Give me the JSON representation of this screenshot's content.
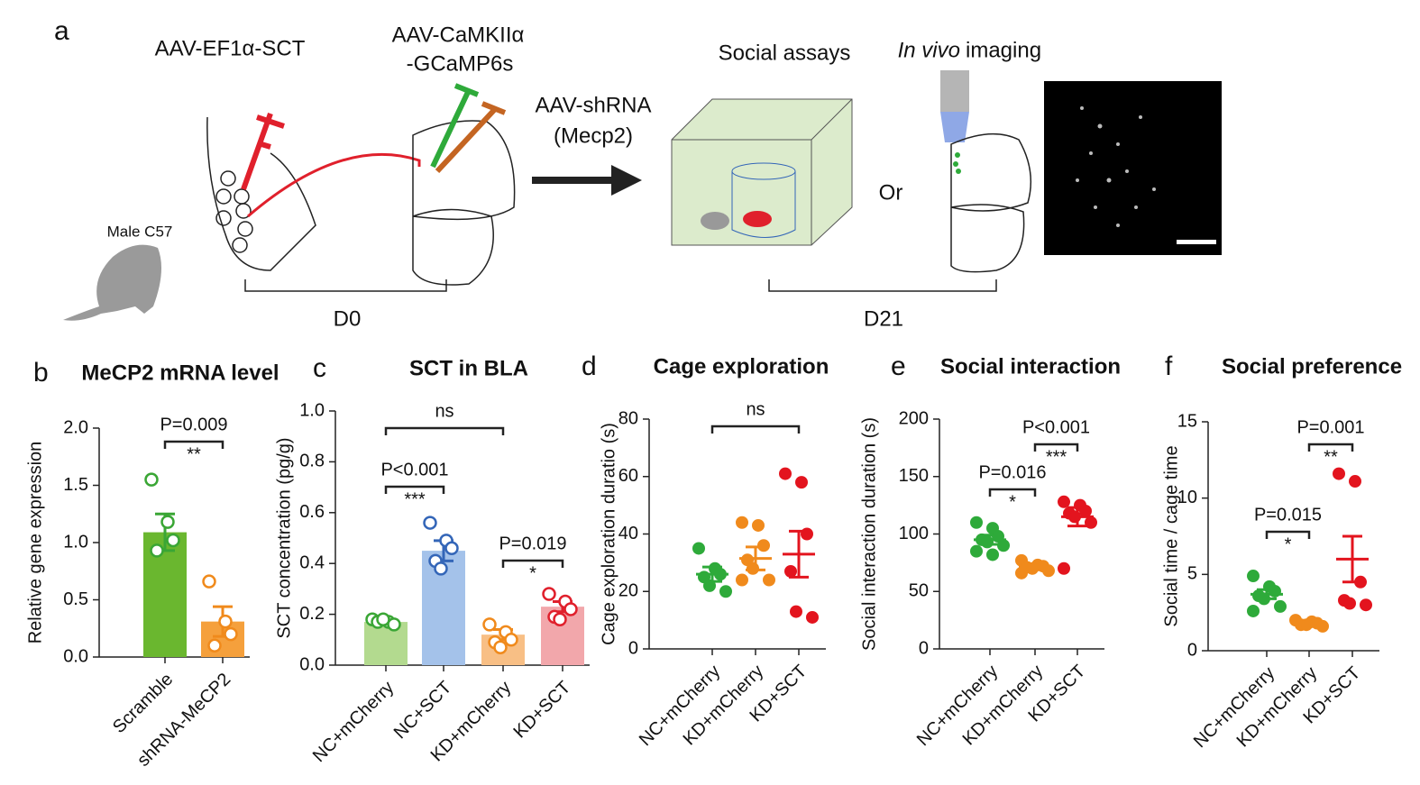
{
  "schematic": {
    "panel": "a",
    "left_virus": "AAV-EF1α-SCT",
    "right_virus_line1": "AAV-CaMKIIα",
    "right_virus_line2": "-GCaMP6s",
    "mouse": "Male C57",
    "day0": "D0",
    "shrna_line1": "AAV-shRNA",
    "shrna_line2": "(Mecp2)",
    "social": "Social assays",
    "imaging_italic": "In vivo",
    "imaging": "imaging",
    "or": "Or",
    "day21": "D21"
  },
  "chart_data": [
    {
      "type": "bar",
      "panel": "b",
      "title": "MeCP2 mRNA level",
      "ylabel": "Relative gene expression",
      "categories": [
        "Scramble",
        "shRNA-MeCP2"
      ],
      "values": [
        1.09,
        0.31
      ],
      "errors": [
        0.16,
        0.13
      ],
      "points": [
        [
          1.55,
          1.18,
          1.02,
          0.93
        ],
        [
          0.66,
          0.31,
          0.2,
          0.1
        ]
      ],
      "fill_colors": [
        "#6ab72f",
        "#f5a03c"
      ],
      "colors": [
        "#3aa635",
        "#f08a1c"
      ],
      "ylim": [
        0,
        2
      ],
      "yticks": [
        {
          "value": 0,
          "label": "0.0"
        },
        {
          "value": 0.5,
          "label": "0.5"
        },
        {
          "value": 1,
          "label": "1.0"
        },
        {
          "value": 1.5,
          "label": "1.5"
        },
        {
          "value": 2,
          "label": "2.0"
        }
      ],
      "annotations": [
        {
          "text": "P=0.009",
          "stars": "**"
        }
      ]
    },
    {
      "type": "bar",
      "panel": "c",
      "title": "SCT in BLA",
      "ylabel": "SCT concentration (pg/g)",
      "categories": [
        "NC+mCherry",
        "NC+SCT",
        "KD+mCherry",
        "KD+SCT"
      ],
      "values": [
        0.17,
        0.45,
        0.12,
        0.23
      ],
      "errors": [
        0.01,
        0.04,
        0.02,
        0.02
      ],
      "points": [
        [
          0.18,
          0.17,
          0.16,
          0.17,
          0.18
        ],
        [
          0.56,
          0.49,
          0.46,
          0.41,
          0.38
        ],
        [
          0.16,
          0.13,
          0.1,
          0.09,
          0.07
        ],
        [
          0.28,
          0.25,
          0.22,
          0.19,
          0.18
        ]
      ],
      "fill_colors": [
        "#b3da8f",
        "#a4c2ea",
        "#f8bf85",
        "#f2a7ab"
      ],
      "colors": [
        "#3aa635",
        "#3466b8",
        "#f08a1c",
        "#e0202c"
      ],
      "ylim": [
        0,
        1
      ],
      "yticks": [
        {
          "value": 0,
          "label": "0.0"
        },
        {
          "value": 0.2,
          "label": "0.2"
        },
        {
          "value": 0.4,
          "label": "0.4"
        },
        {
          "value": 0.6,
          "label": "0.6"
        },
        {
          "value": 0.8,
          "label": "0.8"
        },
        {
          "value": 1,
          "label": "1.0"
        }
      ],
      "annotations": [
        {
          "text": "ns"
        },
        {
          "text": "P<0.001",
          "stars": "***"
        },
        {
          "text": "P=0.019",
          "stars": "*"
        }
      ]
    },
    {
      "type": "dot",
      "panel": "d",
      "title": "Cage exploration",
      "ylabel": "Cage exploration duratio (s)",
      "categories": [
        "NC+mCherry",
        "KD+mCherry",
        "KD+SCT"
      ],
      "values": [
        26,
        31.5,
        33
      ],
      "errors": [
        2.5,
        4,
        8
      ],
      "points": [
        [
          35,
          28,
          26,
          25,
          22,
          20
        ],
        [
          44,
          43,
          36,
          31,
          28,
          24,
          24
        ],
        [
          61,
          58,
          40,
          27,
          13,
          11
        ]
      ],
      "colors": [
        "#2eaa3a",
        "#f08a1c",
        "#e3141e"
      ],
      "ylim": [
        0,
        80
      ],
      "yticks": [
        0,
        20,
        40,
        60,
        80
      ],
      "annotations": [
        {
          "text": "ns"
        }
      ]
    },
    {
      "type": "dot",
      "panel": "e",
      "title": "Social interaction",
      "ylabel": "Social interaction duration (s)",
      "categories": [
        "NC+mCherry",
        "KD+mCherry",
        "KD+SCT"
      ],
      "values": [
        95,
        72,
        115
      ],
      "errors": [
        4,
        2,
        8
      ],
      "points": [
        [
          110,
          105,
          98,
          95,
          93,
          90,
          85,
          82
        ],
        [
          77,
          73,
          72,
          71,
          70,
          68,
          66
        ],
        [
          128,
          125,
          120,
          118,
          115,
          110,
          70
        ]
      ],
      "colors": [
        "#2eaa3a",
        "#f08a1c",
        "#e3141e"
      ],
      "ylim": [
        0,
        200
      ],
      "yticks": [
        0,
        50,
        100,
        150,
        200
      ],
      "annotations": [
        {
          "text": "P=0.016",
          "stars": "*"
        },
        {
          "text": "P<0.001",
          "stars": "***"
        }
      ]
    },
    {
      "type": "dot",
      "panel": "f",
      "title": "Social preference",
      "ylabel": "Social time / cage time",
      "categories": [
        "NC+mCherry",
        "KD+mCherry",
        "KD+SCT"
      ],
      "values": [
        3.7,
        1.75,
        6
      ],
      "errors": [
        0.3,
        0.1,
        1.5
      ],
      "points": [
        [
          4.9,
          4.2,
          3.9,
          3.6,
          3.4,
          2.9,
          2.6
        ],
        [
          2,
          1.9,
          1.8,
          1.7,
          1.7,
          1.6
        ],
        [
          11.6,
          11.1,
          4.5,
          3.3,
          3.1,
          3
        ]
      ],
      "colors": [
        "#2eaa3a",
        "#f08a1c",
        "#e3141e"
      ],
      "ylim": [
        0,
        15
      ],
      "yticks": [
        0,
        5,
        10,
        15
      ],
      "annotations": [
        {
          "text": "P=0.015",
          "stars": "*"
        },
        {
          "text": "P=0.001",
          "stars": "**"
        }
      ]
    }
  ]
}
